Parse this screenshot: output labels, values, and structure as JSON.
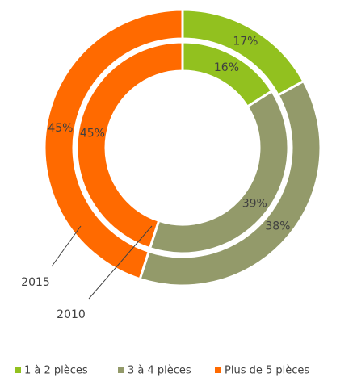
{
  "chart_data": {
    "type": "doughnut",
    "categories": [
      "1 à 2 pièces",
      "3 à 4 pièces",
      "Plus de 5 pièces"
    ],
    "colors": [
      "#92c11f",
      "#939a6a",
      "#ff6a00"
    ],
    "series": [
      {
        "name": "2015",
        "values": [
          17,
          38,
          45
        ],
        "value_labels": [
          "17%",
          "38%",
          "45%"
        ]
      },
      {
        "name": "2010",
        "values": [
          16,
          39,
          45
        ],
        "value_labels": [
          "16%",
          "39%",
          "45%"
        ]
      }
    ],
    "legend": "bottom"
  }
}
